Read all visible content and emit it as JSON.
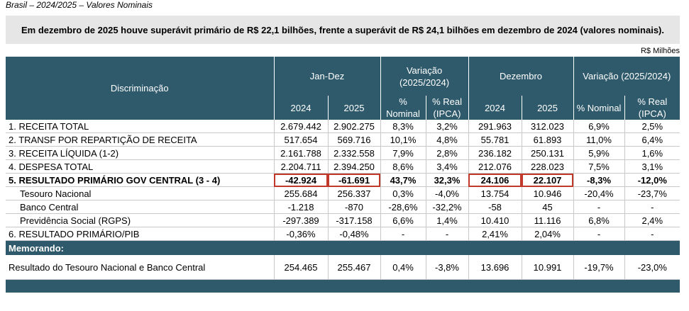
{
  "caption": "Brasil – 2024/2025 – Valores Nominais",
  "banner": "Em dezembro de 2025 houve superávit primário de R$ 22,1 bilhões, frente a superávit de R$ 24,1 bilhões em dezembro de 2024 (valores nominais).",
  "unit": "R$ Milhões",
  "header": {
    "discriminacao": "Discriminação",
    "jan_dez": "Jan-Dez",
    "variacao_jan_dez": "Variação (2025/2024)",
    "dezembro": "Dezembro",
    "variacao_dezembro": "Variação (2025/2024)",
    "sub": [
      "2024",
      "2025",
      "% Nominal",
      "% Real (IPCA)",
      "2024",
      "2025",
      "% Nominal",
      "% Real (IPCA)"
    ]
  },
  "table": {
    "rows": [
      {
        "label": "1. RECEITA TOTAL",
        "values": [
          "2.679.442",
          "2.902.275",
          "8,3%",
          "3,2%",
          "291.963",
          "312.023",
          "6,9%",
          "2,5%"
        ]
      },
      {
        "label": "2. TRANSF POR REPARTIÇÃO DE RECEITA",
        "values": [
          "517.654",
          "569.716",
          "10,1%",
          "4,8%",
          "55.781",
          "61.893",
          "11,0%",
          "6,4%"
        ]
      },
      {
        "label": "3. RECEITA LÍQUIDA (1-2)",
        "values": [
          "2.161.788",
          "2.332.558",
          "7,9%",
          "2,8%",
          "236.182",
          "250.131",
          "5,9%",
          "1,6%"
        ]
      },
      {
        "label": "4. DESPESA TOTAL",
        "values": [
          "2.204.711",
          "2.394.250",
          "8,6%",
          "3,4%",
          "212.076",
          "228.023",
          "7,5%",
          "3,1%"
        ]
      },
      {
        "label": "5. RESULTADO PRIMÁRIO GOV CENTRAL (3 - 4)",
        "bold": true,
        "highlighted": [
          0,
          1,
          4,
          5
        ],
        "values": [
          "-42.924",
          "-61.691",
          "43,7%",
          "32,3%",
          "24.106",
          "22.107",
          "-8,3%",
          "-12,0%"
        ]
      },
      {
        "label": "Tesouro Nacional",
        "indent": true,
        "values": [
          "255.684",
          "256.337",
          "0,3%",
          "-4,0%",
          "13.754",
          "10.946",
          "-20,4%",
          "-23,7%"
        ]
      },
      {
        "label": "Banco Central",
        "indent": true,
        "values": [
          "-1.218",
          "-870",
          "-28,6%",
          "-32,2%",
          "-58",
          "45",
          "-",
          "-"
        ]
      },
      {
        "label": "Previdência Social (RGPS)",
        "indent": true,
        "values": [
          "-297.389",
          "-317.158",
          "6,6%",
          "1,4%",
          "10.410",
          "11.116",
          "6,8%",
          "2,4%"
        ]
      },
      {
        "label": "6. RESULTADO PRIMÁRIO/PIB",
        "values": [
          "-0,36%",
          "-0,48%",
          "-",
          "-",
          "2,41%",
          "2,04%",
          "-",
          "-"
        ]
      }
    ]
  },
  "memo": {
    "title": "Memorando:",
    "label": "Resultado do Tesouro Nacional e Banco Central",
    "values": [
      "254.465",
      "255.467",
      "0,4%",
      "-3,8%",
      "13.696",
      "10.991",
      "-19,7%",
      "-23,0%"
    ]
  }
}
